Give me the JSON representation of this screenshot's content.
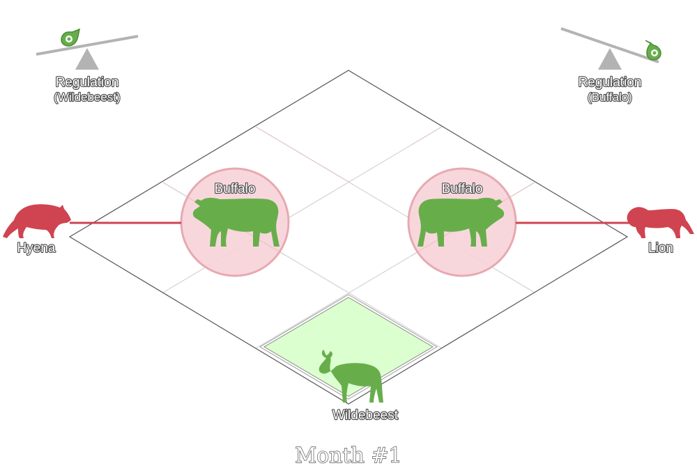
{
  "regulation_left": {
    "title": "Regulation",
    "subject": "(Wildebeest)",
    "icon": "balance-scale-icon",
    "tilt": "right-down"
  },
  "regulation_right": {
    "title": "Regulation",
    "subject": "(Buffalo)",
    "icon": "balance-scale-icon",
    "tilt": "right-down"
  },
  "predators": {
    "left": {
      "label": "Hyena",
      "icon": "hyena-icon",
      "color": "#cf4450"
    },
    "right": {
      "label": "Lion",
      "icon": "lion-icon",
      "color": "#cf4450"
    }
  },
  "herds": {
    "left": {
      "label": "Buffalo",
      "icon": "buffalo-icon",
      "state": "under-predation"
    },
    "right": {
      "label": "Buffalo",
      "icon": "buffalo-icon",
      "state": "under-predation"
    },
    "bottom": {
      "label": "Wildebeest",
      "icon": "wildebeest-icon",
      "state": "grazing"
    }
  },
  "colors": {
    "prey_green": "#67ae4b",
    "predation_fill": "#f7d3d8",
    "predation_ring": "#e7a9b1",
    "pasture_fill": "#dcffd0",
    "grid_line": "#cccccc",
    "board_line": "#555555",
    "scale_gray": "#b3b3b3"
  },
  "month_label": "Month #1"
}
